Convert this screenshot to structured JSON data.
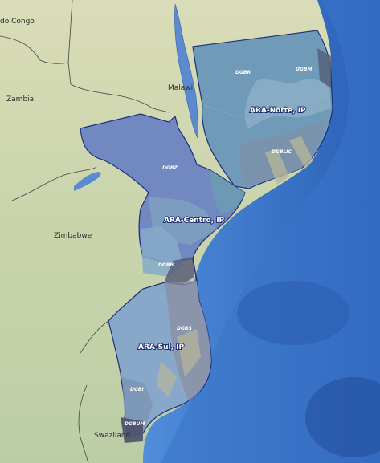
{
  "map": {
    "countries": [
      {
        "id": "congo",
        "label": "do Congo"
      },
      {
        "id": "zambia",
        "label": "Zambia"
      },
      {
        "id": "malawi",
        "label": "Malawi"
      },
      {
        "id": "zimbabwe",
        "label": "Zimbabwe"
      },
      {
        "id": "swaziland",
        "label": "Swaziland"
      }
    ],
    "regions": [
      {
        "id": "norte",
        "label": "ARA-Norte, IP"
      },
      {
        "id": "centro",
        "label": "ARA-Centro, IP"
      },
      {
        "id": "sul",
        "label": "ARA-Sul, IP"
      }
    ],
    "basins": [
      {
        "id": "dgbr",
        "label": "DGBR"
      },
      {
        "id": "dgbm",
        "label": "DGBM"
      },
      {
        "id": "dgblic",
        "label": "DGBLIC"
      },
      {
        "id": "dgbz",
        "label": "DGBZ"
      },
      {
        "id": "dgbb",
        "label": "DGBB"
      },
      {
        "id": "dgbs",
        "label": "DGBS"
      },
      {
        "id": "dgbi",
        "label": "DGBI"
      },
      {
        "id": "dgbum",
        "label": "DGBUM"
      }
    ],
    "colors": {
      "land": "#d3d9b2",
      "ocean_shelf": "#6fa9e4",
      "ocean_deep": "#2f66b8",
      "lake": "#5b8ad1",
      "norte_fill": "#6f9bb8",
      "centro_fill": "#7288c0",
      "sul_fill": "#87a8c8",
      "boundary": "#1e2e7a"
    }
  }
}
